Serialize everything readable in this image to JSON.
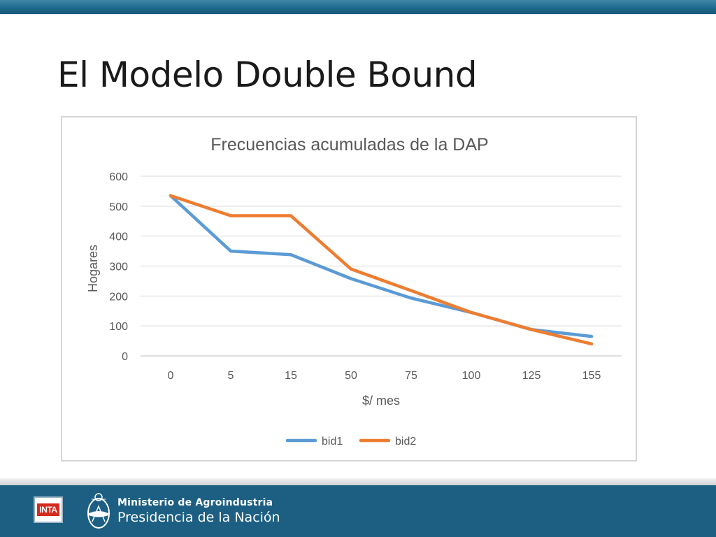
{
  "slide": {
    "title": "El Modelo Double Bound"
  },
  "chart_data": {
    "type": "line",
    "title": "Frecuencias acumuladas de la DAP",
    "xlabel": "$/ mes",
    "ylabel": "Hogares",
    "categories": [
      "0",
      "5",
      "15",
      "50",
      "75",
      "100",
      "125",
      "155"
    ],
    "ylim": [
      0,
      600
    ],
    "yticks": [
      0,
      100,
      200,
      300,
      400,
      500,
      600
    ],
    "grid": true,
    "legend_position": "bottom",
    "series": [
      {
        "name": "bid1",
        "color": "#5b9bd5",
        "values": [
          535,
          350,
          338,
          258,
          193,
          145,
          88,
          65
        ]
      },
      {
        "name": "bid2",
        "color": "#ed7d31",
        "values": [
          535,
          468,
          468,
          290,
          218,
          145,
          88,
          40
        ]
      }
    ]
  },
  "footer": {
    "inta_logo_text": "INTA",
    "ministry": "Ministerio de Agroindustria",
    "presidency": "Presidencia de la Nación",
    "background": "#1c5f83"
  }
}
